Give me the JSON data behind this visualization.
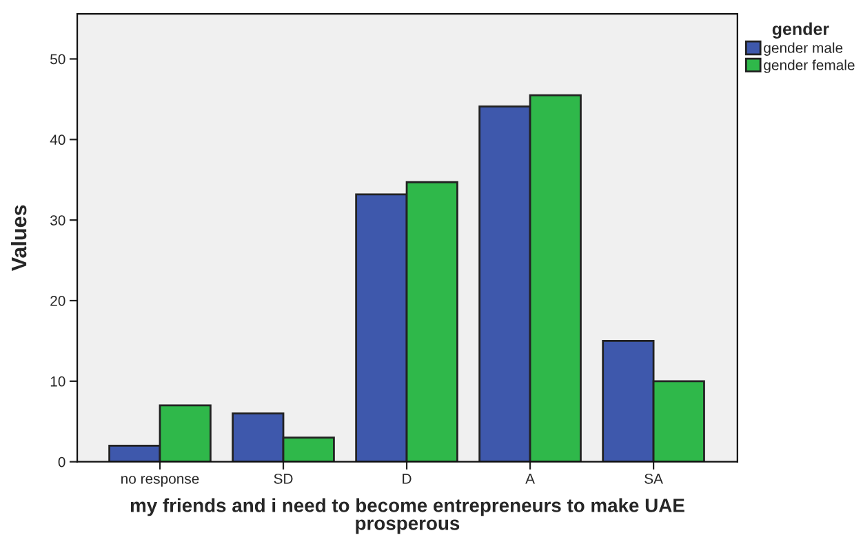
{
  "chart_data": {
    "type": "bar",
    "categories": [
      "no response",
      "SD",
      "D",
      "A",
      "SA"
    ],
    "series": [
      {
        "name": "gender male",
        "color": "#3e58ac",
        "values": [
          2,
          6,
          33.2,
          44.1,
          15
        ]
      },
      {
        "name": "gender female",
        "color": "#2fb84a",
        "values": [
          7,
          3,
          34.7,
          45.5,
          10
        ]
      }
    ],
    "xlabel": "my friends and i need to become entrepreneurs to make UAE\nprosperous",
    "ylabel": "Values",
    "legend_title": "gender",
    "legend": "top right",
    "ylim": [
      0,
      55.6
    ],
    "yticks": [
      0,
      10,
      20,
      30,
      40,
      50
    ],
    "grid": false
  }
}
